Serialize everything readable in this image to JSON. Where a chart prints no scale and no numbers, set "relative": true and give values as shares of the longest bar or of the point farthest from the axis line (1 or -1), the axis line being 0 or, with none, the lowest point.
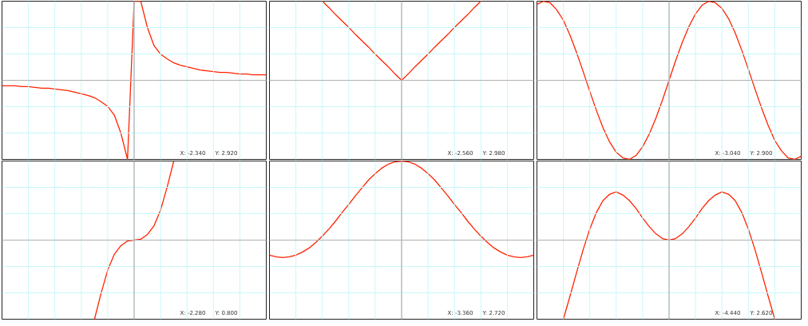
{
  "chart_data": [
    {
      "type": "line",
      "relative": true,
      "grid": true,
      "categories": [
        null,
        null,
        null,
        null,
        null,
        null,
        null,
        null,
        null,
        null,
        null,
        null,
        null,
        null,
        null,
        null,
        null,
        null,
        null,
        null,
        null,
        null,
        null,
        null,
        null,
        null,
        null,
        null,
        null,
        null,
        null,
        null,
        null,
        null,
        null,
        null,
        null,
        null,
        null,
        null,
        null
      ],
      "series": [
        {
          "color": "#ff2200",
          "values": [
            -0.07,
            -0.07,
            -0.07,
            -0.08,
            -0.08,
            -0.09,
            -0.1,
            -0.1,
            -0.11,
            -0.12,
            -0.13,
            -0.15,
            -0.17,
            -0.19,
            -0.22,
            -0.27,
            -0.33,
            -0.44,
            -0.67,
            -1,
            1,
            1,
            0.67,
            0.44,
            0.33,
            0.27,
            0.22,
            0.19,
            0.17,
            0.15,
            0.13,
            0.12,
            0.11,
            0.1,
            0.1,
            0.09,
            0.08,
            0.08,
            0.07,
            0.07,
            0.07
          ]
        }
      ],
      "annotations": [
        "X: -2.340",
        "Y: 2.920"
      ]
    },
    {
      "type": "line",
      "relative": true,
      "grid": true,
      "categories": [
        null,
        null,
        null,
        null,
        null,
        null,
        null,
        null,
        null,
        null,
        null,
        null,
        null,
        null,
        null,
        null,
        null,
        null,
        null,
        null,
        null,
        null,
        null,
        null,
        null,
        null,
        null,
        null,
        null,
        null,
        null,
        null,
        null,
        null,
        null,
        null,
        null,
        null,
        null,
        null,
        null
      ],
      "series": [
        {
          "color": "#ff2200",
          "values": [
            null,
            null,
            null,
            null,
            null,
            null,
            null,
            null,
            1,
            0.92,
            0.83,
            0.75,
            0.67,
            0.58,
            0.5,
            0.42,
            0.33,
            0.25,
            0.17,
            0.08,
            0,
            0.08,
            0.17,
            0.25,
            0.33,
            0.42,
            0.5,
            0.58,
            0.67,
            0.75,
            0.83,
            0.92,
            1,
            null,
            null,
            null,
            null,
            null,
            null,
            null,
            null
          ]
        }
      ],
      "annotations": [
        "X: -2.560",
        "Y: 2.980"
      ]
    },
    {
      "type": "line",
      "relative": true,
      "grid": true,
      "categories": [
        null,
        null,
        null,
        null,
        null,
        null,
        null,
        null,
        null,
        null,
        null,
        null,
        null,
        null,
        null,
        null,
        null,
        null,
        null,
        null,
        null,
        null,
        null,
        null,
        null,
        null,
        null,
        null,
        null,
        null,
        null,
        null,
        null,
        null,
        null,
        null,
        null,
        null,
        null,
        null,
        null
      ],
      "series": [
        {
          "color": "#ff2200",
          "values": [
            0.96,
            1,
            0.98,
            0.89,
            0.76,
            0.57,
            0.35,
            0.11,
            -0.14,
            -0.38,
            -0.6,
            -0.78,
            -0.91,
            -0.98,
            -1,
            -0.95,
            -0.84,
            -0.68,
            -0.48,
            -0.25,
            0,
            0.25,
            0.48,
            0.68,
            0.84,
            0.95,
            1,
            0.98,
            0.91,
            0.78,
            0.6,
            0.38,
            0.14,
            -0.11,
            -0.35,
            -0.57,
            -0.76,
            -0.89,
            -0.98,
            -1,
            -0.96
          ]
        }
      ],
      "annotations": [
        "X: -3.040",
        "Y: 2.900"
      ]
    },
    {
      "type": "line",
      "relative": true,
      "grid": true,
      "categories": [
        null,
        null,
        null,
        null,
        null,
        null,
        null,
        null,
        null,
        null,
        null,
        null,
        null,
        null,
        null,
        null,
        null,
        null,
        null,
        null,
        null,
        null,
        null,
        null,
        null,
        null,
        null,
        null,
        null,
        null,
        null,
        null,
        null,
        null,
        null,
        null,
        null,
        null,
        null,
        null,
        null
      ],
      "series": [
        {
          "color": "#ff2200",
          "values": [
            null,
            null,
            null,
            null,
            null,
            null,
            null,
            null,
            null,
            null,
            null,
            null,
            null,
            null,
            -1,
            -0.67,
            -0.38,
            -0.18,
            -0.07,
            -0.01,
            0,
            0.01,
            0.07,
            0.18,
            0.38,
            0.67,
            1,
            null,
            null,
            null,
            null,
            null,
            null,
            null,
            null,
            null,
            null,
            null,
            null,
            null,
            null
          ]
        }
      ],
      "annotations": [
        "X: -2.280",
        "Y: 0.800"
      ]
    },
    {
      "type": "line",
      "relative": true,
      "grid": true,
      "categories": [
        null,
        null,
        null,
        null,
        null,
        null,
        null,
        null,
        null,
        null,
        null,
        null,
        null,
        null,
        null,
        null,
        null,
        null,
        null,
        null,
        null,
        null,
        null,
        null,
        null,
        null,
        null,
        null,
        null,
        null,
        null,
        null,
        null,
        null,
        null,
        null,
        null,
        null,
        null,
        null,
        null
      ],
      "series": [
        {
          "color": "#ff2200",
          "values": [
            -0.19,
            -0.21,
            -0.22,
            -0.21,
            -0.19,
            -0.15,
            -0.1,
            -0.03,
            0.05,
            0.14,
            0.24,
            0.35,
            0.45,
            0.56,
            0.66,
            0.76,
            0.84,
            0.91,
            0.96,
            0.99,
            1,
            0.99,
            0.96,
            0.91,
            0.84,
            0.76,
            0.66,
            0.56,
            0.45,
            0.35,
            0.24,
            0.14,
            0.05,
            -0.03,
            -0.1,
            -0.15,
            -0.19,
            -0.21,
            -0.22,
            -0.21,
            -0.19
          ]
        }
      ],
      "annotations": [
        "X: -3.360",
        "Y: 2.720"
      ]
    },
    {
      "type": "line",
      "relative": true,
      "grid": true,
      "categories": [
        null,
        null,
        null,
        null,
        null,
        null,
        null,
        null,
        null,
        null,
        null,
        null,
        null,
        null,
        null,
        null,
        null,
        null,
        null,
        null,
        null,
        null,
        null,
        null,
        null,
        null,
        null,
        null,
        null,
        null,
        null,
        null,
        null,
        null,
        null,
        null,
        null,
        null,
        null,
        null,
        null
      ],
      "series": [
        {
          "color": "#ff2200",
          "values": [
            null,
            null,
            null,
            null,
            -1,
            -0.71,
            -0.41,
            -0.12,
            0.14,
            0.35,
            0.5,
            0.58,
            0.61,
            0.57,
            0.5,
            0.4,
            0.28,
            0.17,
            0.08,
            0.02,
            0,
            0.02,
            0.08,
            0.17,
            0.28,
            0.4,
            0.5,
            0.57,
            0.61,
            0.58,
            0.5,
            0.35,
            0.14,
            -0.12,
            -0.41,
            -0.71,
            -1,
            null,
            null,
            null,
            null
          ]
        }
      ],
      "annotations": [
        "X: -4.440",
        "Y: 2.620"
      ]
    }
  ]
}
